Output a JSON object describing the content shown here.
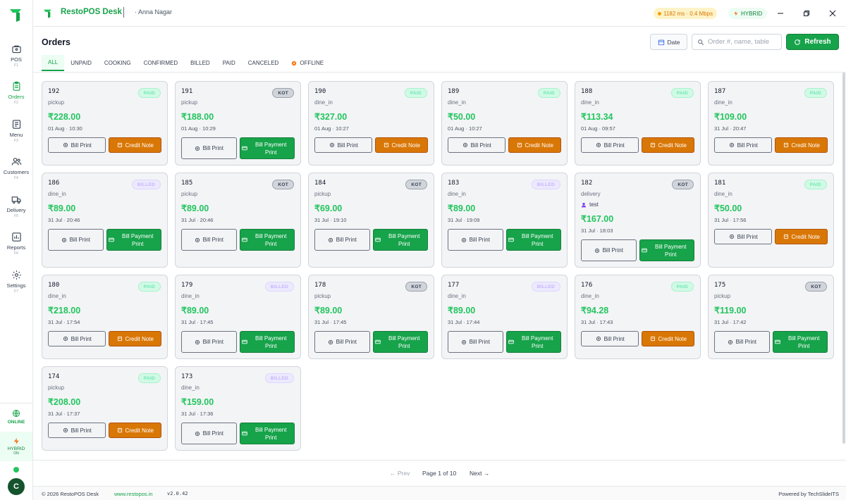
{
  "app": {
    "name": "RestoPOS Desk",
    "branch": "· Anna Nagar",
    "network": "1182 ms · 0.4 Mbps",
    "mode": "HYBRID"
  },
  "sidebar": {
    "items": [
      {
        "label": "POS",
        "key": "F1",
        "icon": "pos-icon"
      },
      {
        "label": "Orders",
        "key": "F2",
        "icon": "clipboard-icon",
        "active": true
      },
      {
        "label": "Menu",
        "key": "F3",
        "icon": "menu-book-icon"
      },
      {
        "label": "Customers",
        "key": "F4",
        "icon": "users-icon"
      },
      {
        "label": "Delivery",
        "key": "F5",
        "icon": "truck-icon"
      },
      {
        "label": "Reports",
        "key": "F6",
        "icon": "bar-chart-icon"
      },
      {
        "label": "Settings",
        "key": "F7",
        "icon": "gear-icon"
      }
    ],
    "online_label": "ONLINE",
    "hybrid_label": "HYBRID",
    "hybrid_sub": "ON",
    "avatar": "C"
  },
  "header": {
    "title": "Orders",
    "date_label": "Date",
    "search_placeholder": "Order #, name, table",
    "refresh_label": "Refresh"
  },
  "tabs": [
    "ALL",
    "UNPAID",
    "COOKING",
    "CONFIRMED",
    "BILLED",
    "PAID",
    "CANCELED",
    "OFFLINE"
  ],
  "buttons": {
    "bill_print": "Bill Print",
    "credit_note": "Credit Note",
    "bill_payment_print": "Bill Payment Print"
  },
  "orders": [
    {
      "num": "192",
      "type": "pickup",
      "amount": "₹228.00",
      "time": "01 Aug · 10:30",
      "status": "PAID"
    },
    {
      "num": "191",
      "type": "pickup",
      "amount": "₹188.00",
      "time": "01 Aug · 10:29",
      "status": "KOT"
    },
    {
      "num": "190",
      "type": "dine_in",
      "amount": "₹327.00",
      "time": "01 Aug · 10:27",
      "status": "PAID"
    },
    {
      "num": "189",
      "type": "dine_in",
      "amount": "₹50.00",
      "time": "01 Aug · 10:27",
      "status": "PAID"
    },
    {
      "num": "188",
      "type": "dine_in",
      "amount": "₹113.34",
      "time": "01 Aug · 09:57",
      "status": "PAID"
    },
    {
      "num": "187",
      "type": "dine_in",
      "amount": "₹109.00",
      "time": "31 Jul · 20:47",
      "status": "PAID"
    },
    {
      "num": "186",
      "type": "dine_in",
      "amount": "₹89.00",
      "time": "31 Jul · 20:46",
      "status": "BILLED"
    },
    {
      "num": "185",
      "type": "pickup",
      "amount": "₹89.00",
      "time": "31 Jul · 20:46",
      "status": "KOT"
    },
    {
      "num": "184",
      "type": "pickup",
      "amount": "₹69.00",
      "time": "31 Jul · 19:10",
      "status": "KOT"
    },
    {
      "num": "183",
      "type": "dine_in",
      "amount": "₹89.00",
      "time": "31 Jul · 19:09",
      "status": "BILLED"
    },
    {
      "num": "182",
      "type": "delivery",
      "customer": "test",
      "amount": "₹167.00",
      "time": "31 Jul · 18:03",
      "status": "KOT"
    },
    {
      "num": "181",
      "type": "dine_in",
      "amount": "₹50.00",
      "time": "31 Jul · 17:56",
      "status": "PAID"
    },
    {
      "num": "180",
      "type": "dine_in",
      "amount": "₹218.00",
      "time": "31 Jul · 17:54",
      "status": "PAID"
    },
    {
      "num": "179",
      "type": "dine_in",
      "amount": "₹89.00",
      "time": "31 Jul · 17:45",
      "status": "BILLED"
    },
    {
      "num": "178",
      "type": "pickup",
      "amount": "₹89.00",
      "time": "31 Jul · 17:45",
      "status": "KOT"
    },
    {
      "num": "177",
      "type": "dine_in",
      "amount": "₹89.00",
      "time": "31 Jul · 17:44",
      "status": "BILLED"
    },
    {
      "num": "176",
      "type": "dine_in",
      "amount": "₹94.28",
      "time": "31 Jul · 17:43",
      "status": "PAID"
    },
    {
      "num": "175",
      "type": "pickup",
      "amount": "₹119.00",
      "time": "31 Jul · 17:42",
      "status": "KOT"
    },
    {
      "num": "174",
      "type": "pickup",
      "amount": "₹208.00",
      "time": "31 Jul · 17:37",
      "status": "PAID"
    },
    {
      "num": "173",
      "type": "dine_in",
      "amount": "₹159.00",
      "time": "31 Jul · 17:36",
      "status": "BILLED"
    }
  ],
  "pager": {
    "prev": "← Prev",
    "info": "Page 1 of 10",
    "next": "Next →"
  },
  "footer": {
    "copyright": "© 2026 RestoPOS Desk",
    "link": "www.restopos.in",
    "version": "v2.0.42",
    "powered": "Powered by TechSlideITS"
  }
}
